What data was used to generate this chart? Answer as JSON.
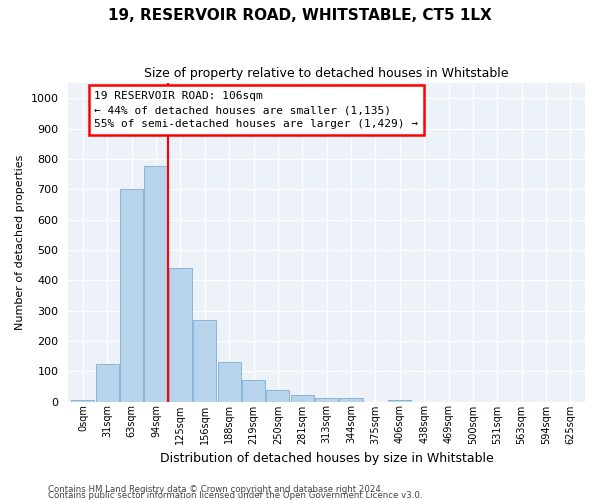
{
  "title": "19, RESERVOIR ROAD, WHITSTABLE, CT5 1LX",
  "subtitle": "Size of property relative to detached houses in Whitstable",
  "xlabel": "Distribution of detached houses by size in Whitstable",
  "ylabel": "Number of detached properties",
  "bar_labels": [
    "0sqm",
    "31sqm",
    "63sqm",
    "94sqm",
    "125sqm",
    "156sqm",
    "188sqm",
    "219sqm",
    "250sqm",
    "281sqm",
    "313sqm",
    "344sqm",
    "375sqm",
    "406sqm",
    "438sqm",
    "469sqm",
    "500sqm",
    "531sqm",
    "563sqm",
    "594sqm",
    "625sqm"
  ],
  "bar_values": [
    5,
    125,
    700,
    775,
    440,
    270,
    130,
    70,
    38,
    22,
    12,
    10,
    0,
    5,
    0,
    0,
    0,
    0,
    0,
    0,
    0
  ],
  "bar_color": "#b8d4ec",
  "bar_edge_color": "#8ab4d8",
  "vline_x": 3.5,
  "vline_color": "red",
  "annotation_line1": "19 RESERVOIR ROAD: 106sqm",
  "annotation_line2": "← 44% of detached houses are smaller (1,135)",
  "annotation_line3": "55% of semi-detached houses are larger (1,429) →",
  "ylim": [
    0,
    1050
  ],
  "yticks": [
    0,
    100,
    200,
    300,
    400,
    500,
    600,
    700,
    800,
    900,
    1000
  ],
  "footer1": "Contains HM Land Registry data © Crown copyright and database right 2024.",
  "footer2": "Contains public sector information licensed under the Open Government Licence v3.0.",
  "bg_color": "#ffffff",
  "plot_bg_color": "#edf2f9"
}
